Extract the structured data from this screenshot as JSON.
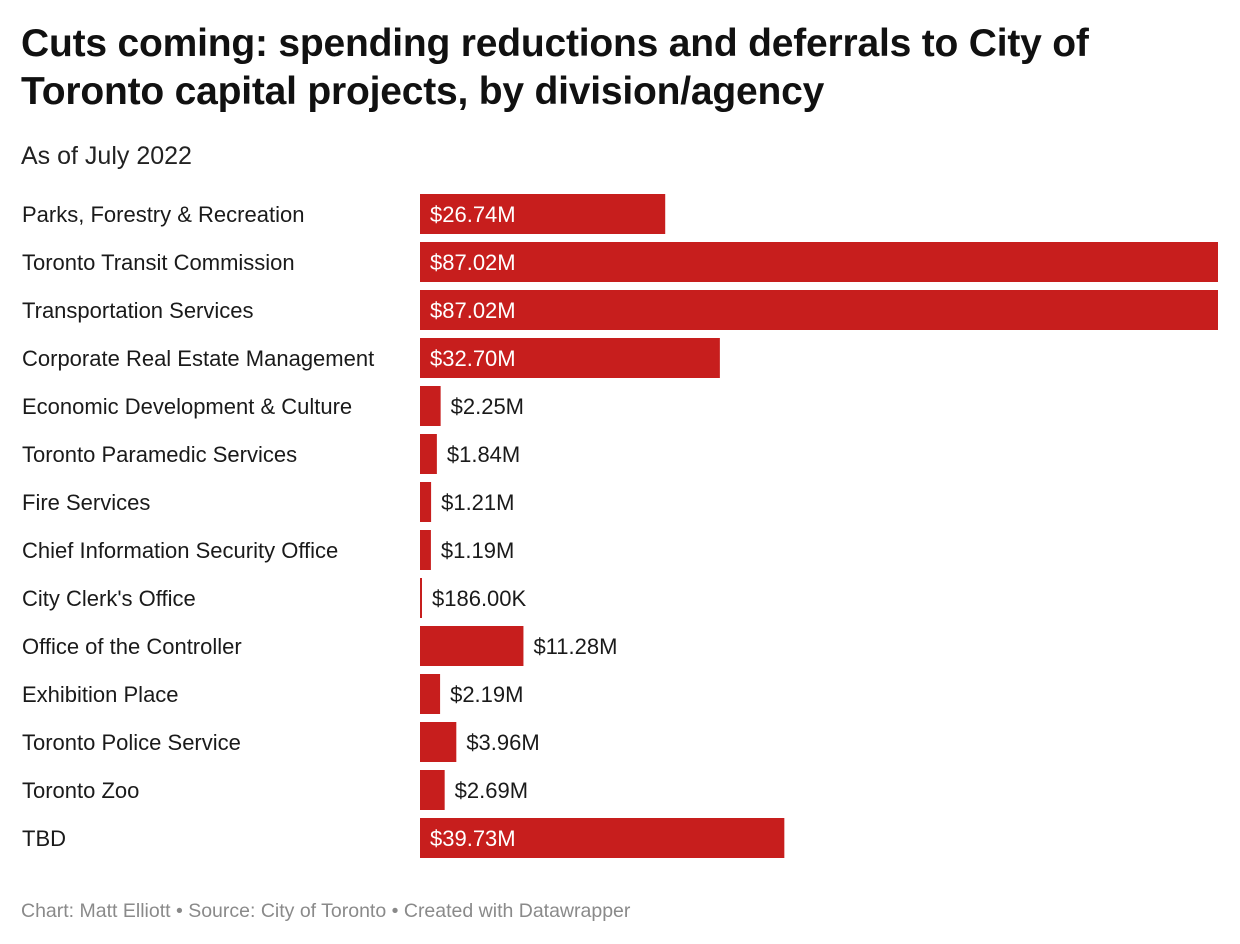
{
  "chart_data": {
    "type": "bar",
    "orientation": "horizontal",
    "title": "Cuts coming: spending reductions and deferrals to City of Toronto capital projects, by division/agency",
    "subtitle": "As of July 2022",
    "categories": [
      "Parks, Forestry & Recreation",
      "Toronto Transit Commission",
      "Transportation Services",
      "Corporate Real Estate Management",
      "Economic Development & Culture",
      "Toronto Paramedic Services",
      "Fire Services",
      "Chief Information Security Office",
      "City Clerk's Office",
      "Office of the Controller",
      "Exhibition Place",
      "Toronto Police Service",
      "Toronto Zoo",
      "TBD"
    ],
    "values": [
      26.74,
      87.02,
      87.02,
      32.7,
      2.25,
      1.84,
      1.21,
      1.19,
      0.186,
      11.28,
      2.19,
      3.96,
      2.69,
      39.73
    ],
    "value_labels": [
      "$26.74M",
      "$87.02M",
      "$87.02M",
      "$32.70M",
      "$2.25M",
      "$1.84M",
      "$1.21M",
      "$1.19M",
      "$186.00K",
      "$11.28M",
      "$2.19M",
      "$3.96M",
      "$2.69M",
      "$39.73M"
    ],
    "unit": "millions of dollars",
    "xlim": [
      0,
      87.02
    ],
    "grid": false,
    "bar_color": "#c71e1d",
    "label_color_inside": "#ffffff",
    "label_color_outside": "#1a1a1a"
  },
  "footer": "Chart: Matt Elliott • Source: City of Toronto • Created with Datawrapper"
}
